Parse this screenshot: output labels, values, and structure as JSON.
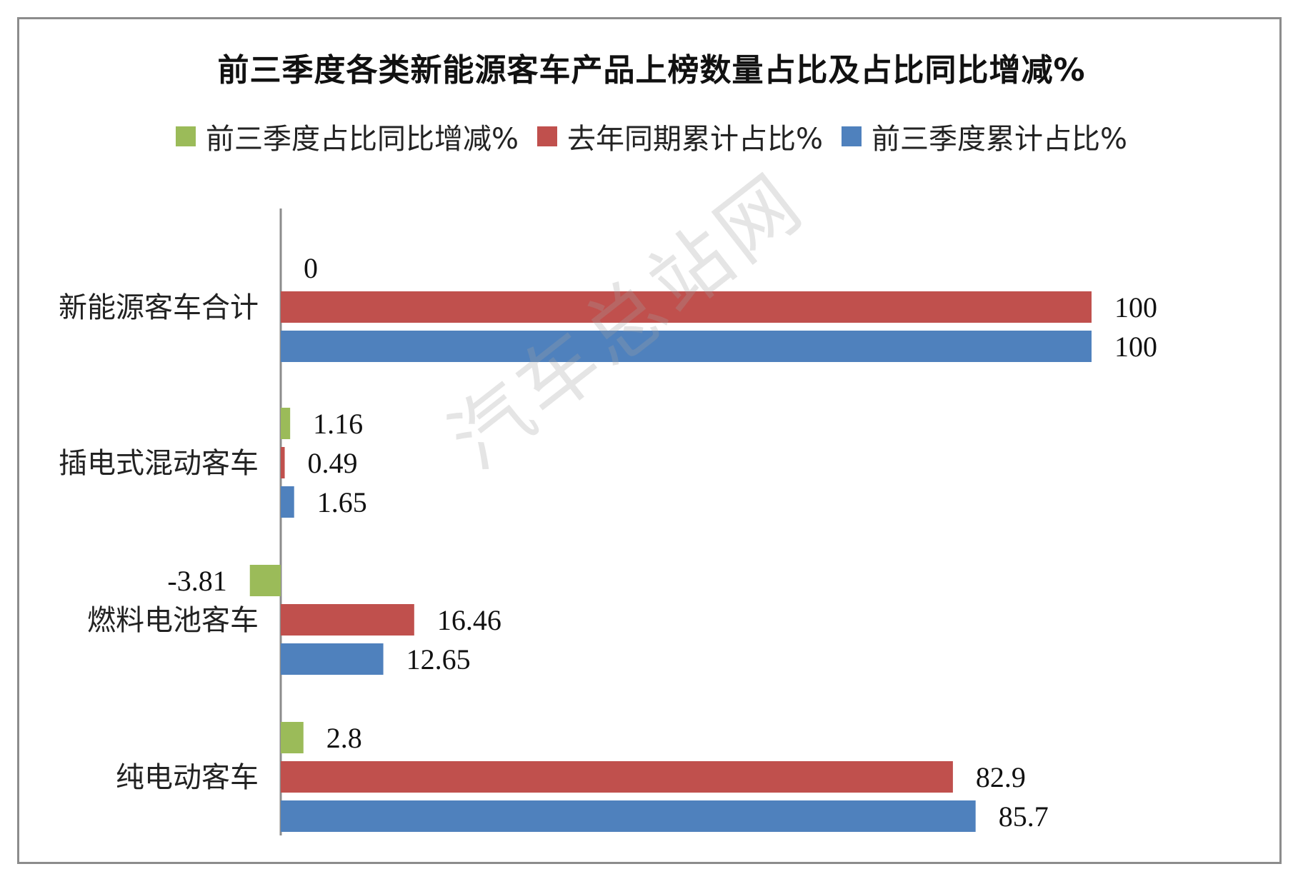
{
  "chart_data": {
    "type": "bar",
    "orientation": "horizontal",
    "title": "前三季度各类新能源客车产品上榜数量占比及占比同比增减%",
    "categories": [
      "新能源客车合计",
      "插电式混动客车",
      "燃料电池客车",
      "纯电动客车"
    ],
    "series": [
      {
        "name": "前三季度占比同比增减%",
        "color": "#9bbb59",
        "values": [
          0,
          1.16,
          -3.81,
          2.8
        ]
      },
      {
        "name": "去年同期累计占比%",
        "color": "#c0504d",
        "values": [
          100,
          0.49,
          16.46,
          82.9
        ]
      },
      {
        "name": "前三季度累计占比%",
        "color": "#4f81bd",
        "values": [
          100,
          1.65,
          12.65,
          85.7
        ]
      }
    ],
    "value_labels": [
      [
        "0",
        "1.16",
        "-3.81",
        "2.8"
      ],
      [
        "100",
        "0.49",
        "16.46",
        "82.9"
      ],
      [
        "100",
        "1.65",
        "12.65",
        "85.7"
      ]
    ],
    "legend_order": [
      0,
      1,
      2
    ],
    "legend_position": "top",
    "xlim": [
      -4,
      100
    ],
    "grid": false
  },
  "watermark": "汽车总站网"
}
